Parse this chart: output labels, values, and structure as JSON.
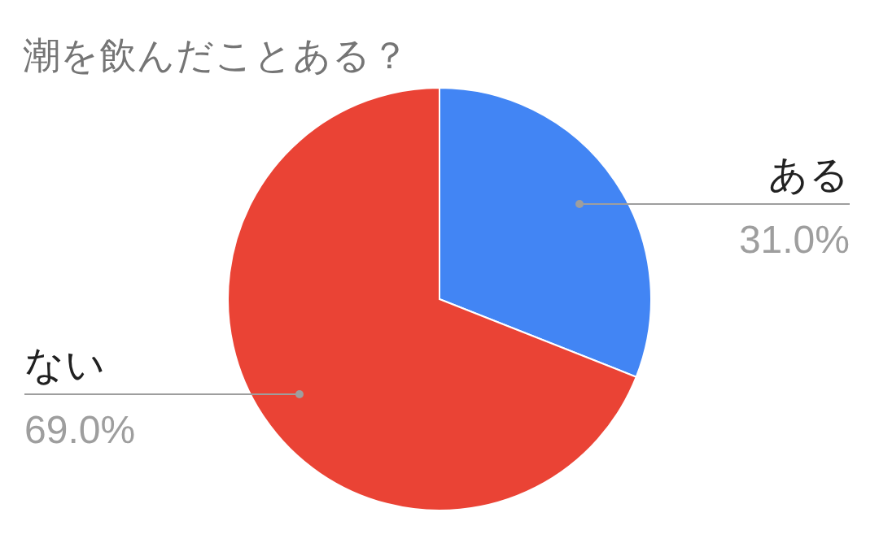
{
  "chart_data": {
    "type": "pie",
    "title": "潮を飲んだことある？",
    "categories": [
      "ある",
      "ない"
    ],
    "values": [
      31.0,
      69.0
    ],
    "colors": [
      "#4285f4",
      "#ea4335"
    ],
    "value_labels": [
      "31.0%",
      "69.0%"
    ]
  }
}
